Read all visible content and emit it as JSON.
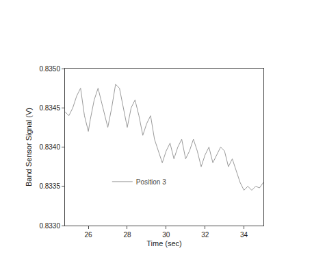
{
  "chart_data": {
    "type": "line",
    "x_label": "Time (sec)",
    "y_label": "Band Sensor Signal (V)",
    "series": [
      {
        "name": "Position 3",
        "color": "#9a9a9a",
        "x": [
          24.8,
          25.0,
          25.2,
          25.4,
          25.6,
          25.8,
          26.0,
          26.1,
          26.3,
          26.5,
          26.7,
          26.9,
          27.0,
          27.2,
          27.4,
          27.6,
          27.8,
          28.0,
          28.2,
          28.4,
          28.6,
          28.8,
          29.0,
          29.2,
          29.4,
          29.6,
          29.8,
          30.0,
          30.2,
          30.4,
          30.6,
          30.8,
          31.0,
          31.2,
          31.4,
          31.6,
          31.8,
          32.0,
          32.2,
          32.4,
          32.6,
          32.8,
          33.0,
          33.2,
          33.4,
          33.6,
          33.8,
          34.0,
          34.2,
          34.4,
          34.6,
          34.8,
          35.0
        ],
        "values": [
          0.83445,
          0.8344,
          0.8345,
          0.83465,
          0.83475,
          0.8344,
          0.8342,
          0.83435,
          0.8346,
          0.83475,
          0.83455,
          0.83435,
          0.83425,
          0.8345,
          0.8348,
          0.83475,
          0.8345,
          0.83425,
          0.8345,
          0.8346,
          0.8344,
          0.83415,
          0.8343,
          0.8344,
          0.8341,
          0.83395,
          0.8338,
          0.83395,
          0.83405,
          0.83385,
          0.834,
          0.8341,
          0.83385,
          0.83395,
          0.8341,
          0.83395,
          0.83375,
          0.8339,
          0.834,
          0.8338,
          0.8339,
          0.834,
          0.83395,
          0.83375,
          0.83385,
          0.8337,
          0.83355,
          0.83345,
          0.8335,
          0.83345,
          0.8335,
          0.83348,
          0.83355
        ]
      }
    ],
    "xlim": [
      24.8,
      35.0
    ],
    "xticks": [
      26,
      28,
      30,
      32,
      34
    ],
    "ylim": [
      0.833,
      0.835
    ],
    "yticks": [
      {
        "value": 0.833,
        "label": "0.8330"
      },
      0.8335,
      {
        "value": 0.834,
        "label": "0.8340"
      },
      0.8345,
      {
        "value": 0.835,
        "label": "0.8350"
      }
    ],
    "grid": false,
    "legend": "lower left"
  }
}
